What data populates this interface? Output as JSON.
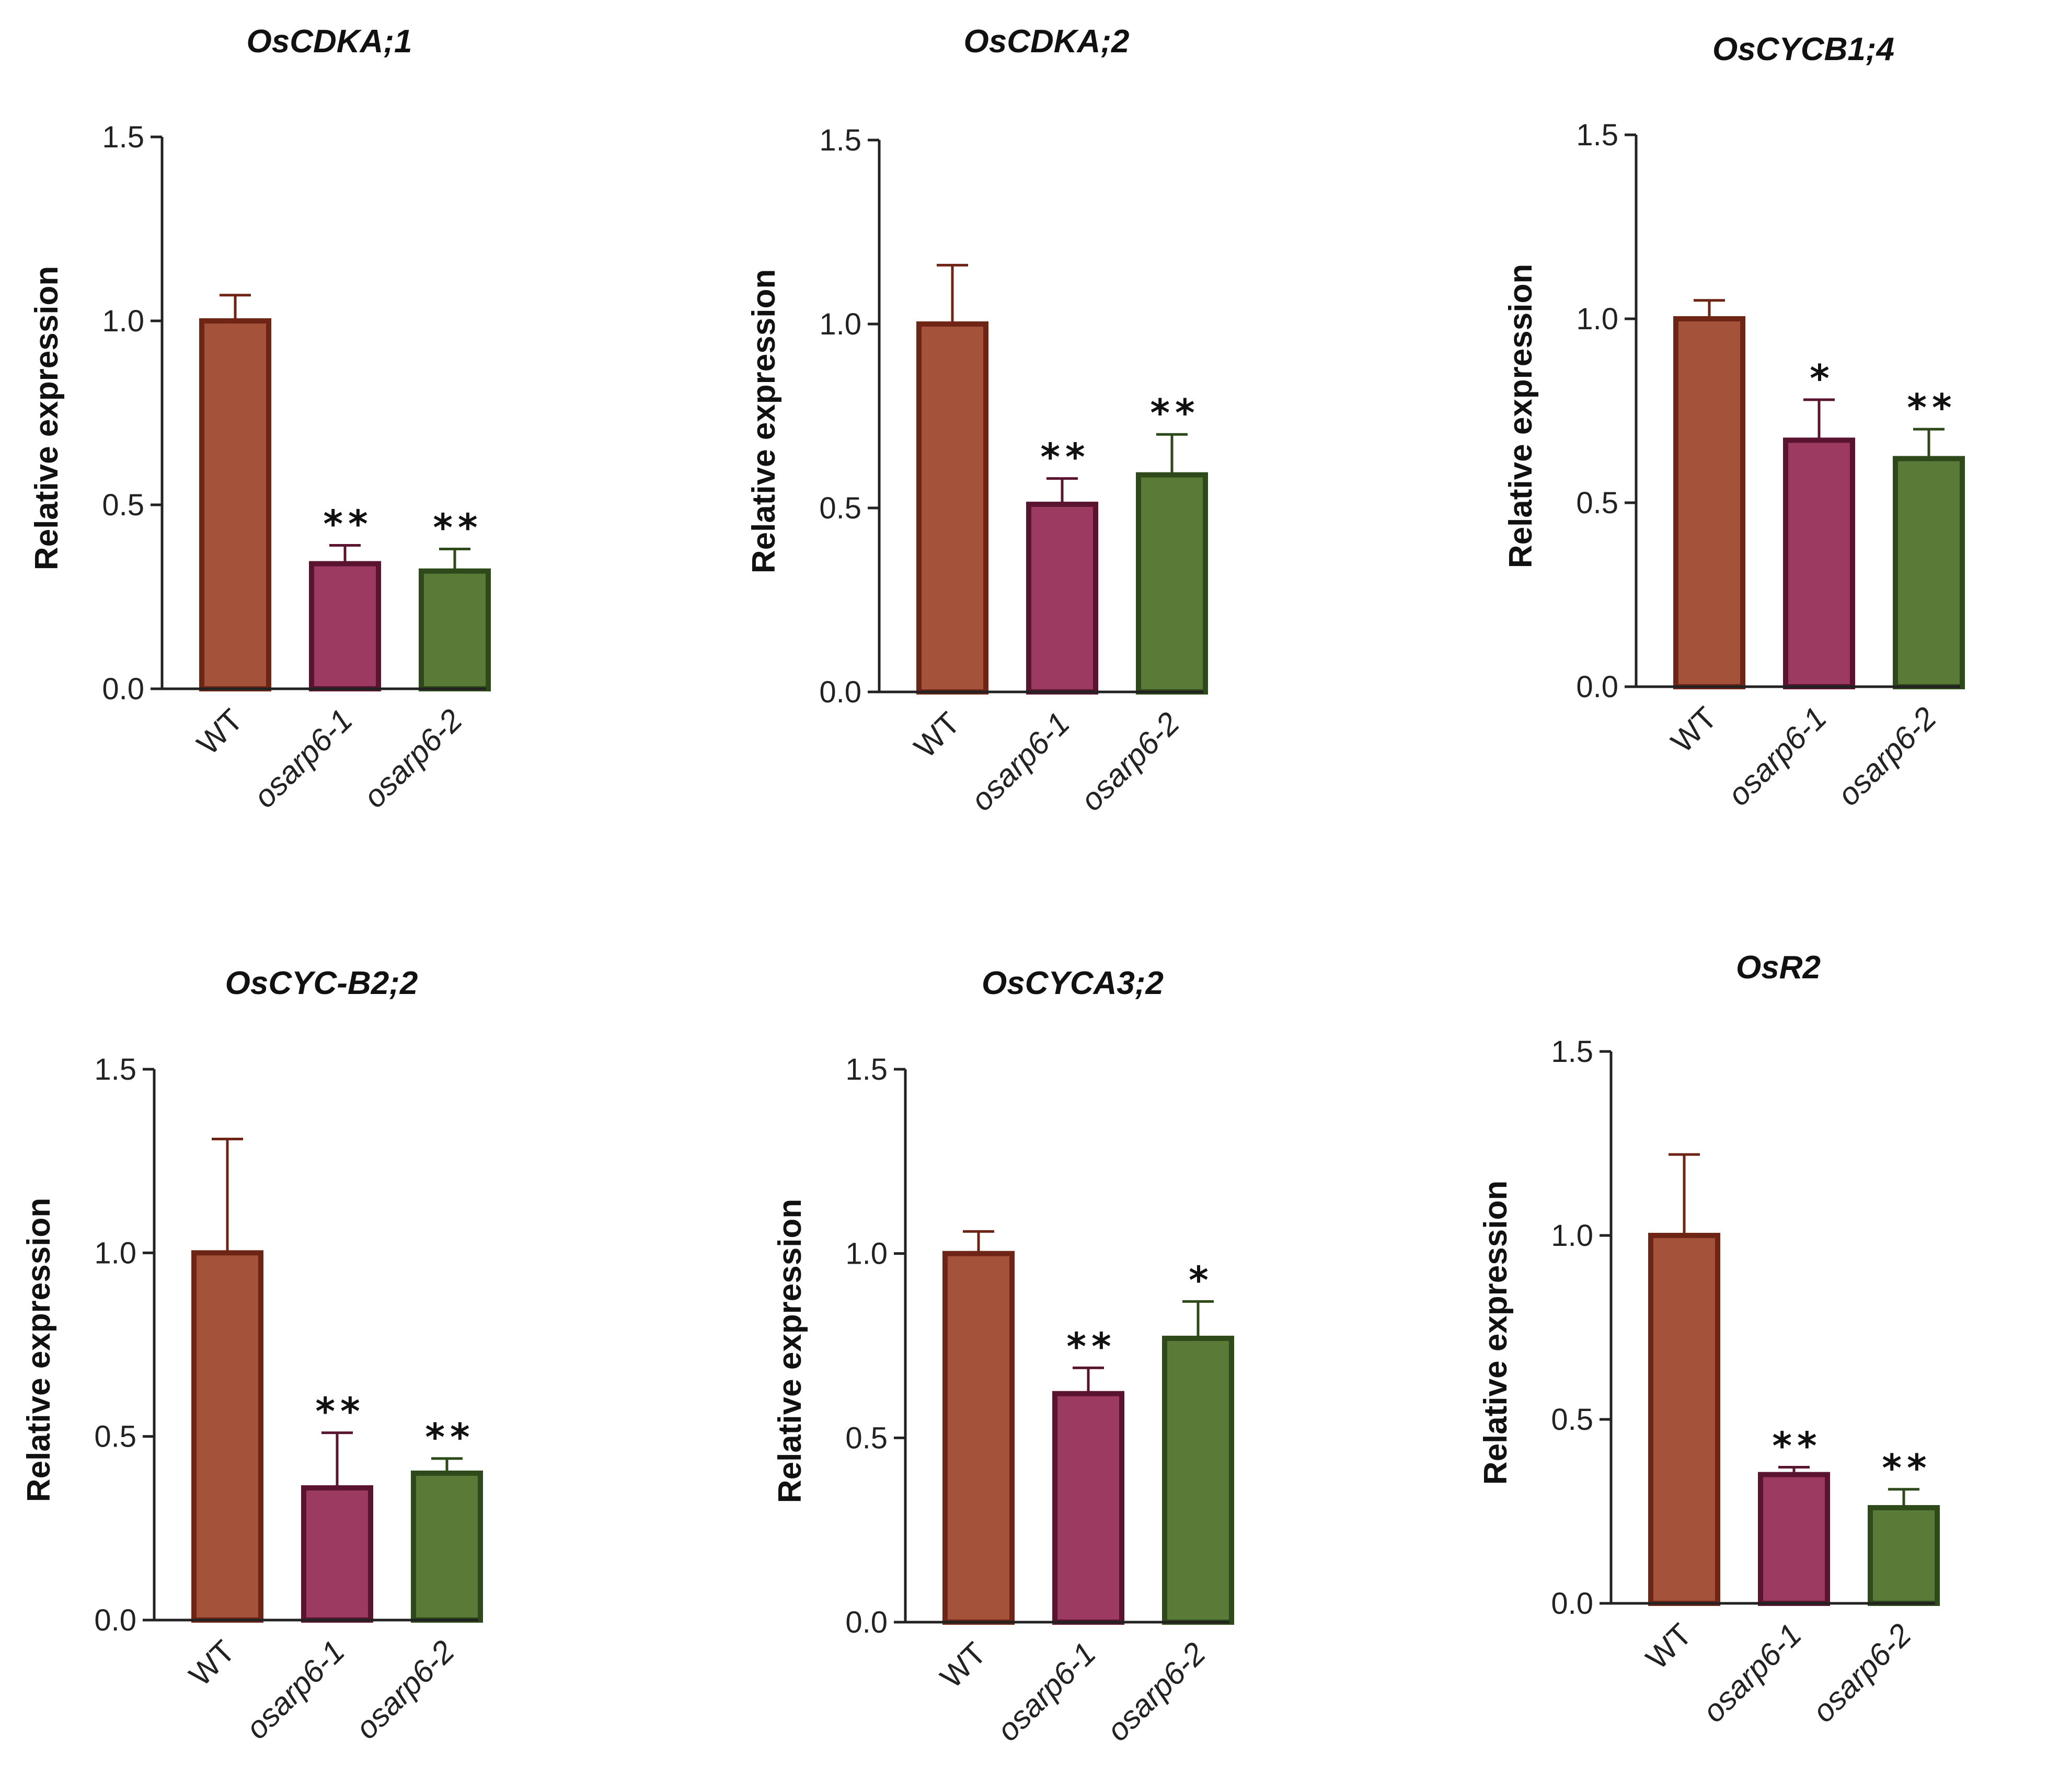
{
  "colors": {
    "axis": "#222222",
    "text": "#111111"
  },
  "chart_data": [
    {
      "type": "bar",
      "title": "OsCDKA;1",
      "ylabel": "Relative expression",
      "xlabel": "",
      "ylim": [
        0,
        1.5
      ],
      "yticks": [
        "0.0",
        "0.5",
        "1.0",
        "1.5"
      ],
      "categories": [
        "WT",
        "osarp6-1",
        "osarp6-2"
      ],
      "values": [
        1.0,
        0.34,
        0.32
      ],
      "errors": [
        0.07,
        0.05,
        0.06
      ],
      "significance": [
        "",
        "**",
        "**"
      ],
      "fill_colors": [
        "#a4533a",
        "#9c3a62",
        "#5a7b37"
      ],
      "edge_colors": [
        "#6e2516",
        "#5a1430",
        "#2e4a1a"
      ]
    },
    {
      "type": "bar",
      "title": "OsCDKA;2",
      "ylabel": "Relative expression",
      "xlabel": "",
      "ylim": [
        0,
        1.5
      ],
      "yticks": [
        "0.0",
        "0.5",
        "1.0",
        "1.5"
      ],
      "categories": [
        "WT",
        "osarp6-1",
        "osarp6-2"
      ],
      "values": [
        1.0,
        0.51,
        0.59
      ],
      "errors": [
        0.16,
        0.07,
        0.11
      ],
      "significance": [
        "",
        "**",
        "**"
      ],
      "fill_colors": [
        "#a4533a",
        "#9c3a62",
        "#5a7b37"
      ],
      "edge_colors": [
        "#6e2516",
        "#5a1430",
        "#2e4a1a"
      ]
    },
    {
      "type": "bar",
      "title": "OsCYCB1;4",
      "ylabel": "Relative expression",
      "xlabel": "",
      "ylim": [
        0,
        1.5
      ],
      "yticks": [
        "0.0",
        "0.5",
        "1.0",
        "1.5"
      ],
      "categories": [
        "WT",
        "osarp6-1",
        "osarp6-2"
      ],
      "values": [
        1.0,
        0.67,
        0.62
      ],
      "errors": [
        0.05,
        0.11,
        0.08
      ],
      "significance": [
        "",
        "*",
        "**"
      ],
      "fill_colors": [
        "#a4533a",
        "#9c3a62",
        "#5a7b37"
      ],
      "edge_colors": [
        "#6e2516",
        "#5a1430",
        "#2e4a1a"
      ]
    },
    {
      "type": "bar",
      "title": "OsCYC-B2;2",
      "ylabel": "Relative expression",
      "xlabel": "",
      "ylim": [
        0,
        1.5
      ],
      "yticks": [
        "0.0",
        "0.5",
        "1.0",
        "1.5"
      ],
      "categories": [
        "WT",
        "osarp6-1",
        "osarp6-2"
      ],
      "values": [
        1.0,
        0.36,
        0.4
      ],
      "errors": [
        0.31,
        0.15,
        0.04
      ],
      "significance": [
        "",
        "**",
        "**"
      ],
      "fill_colors": [
        "#a4533a",
        "#9c3a62",
        "#5a7b37"
      ],
      "edge_colors": [
        "#6e2516",
        "#5a1430",
        "#2e4a1a"
      ]
    },
    {
      "type": "bar",
      "title": "OsCYCA3;2",
      "ylabel": "Relative expression",
      "xlabel": "",
      "ylim": [
        0,
        1.5
      ],
      "yticks": [
        "0.0",
        "0.5",
        "1.0",
        "1.5"
      ],
      "categories": [
        "WT",
        "osarp6-1",
        "osarp6-2"
      ],
      "values": [
        1.0,
        0.62,
        0.77
      ],
      "errors": [
        0.06,
        0.07,
        0.1
      ],
      "significance": [
        "",
        "**",
        "*"
      ],
      "fill_colors": [
        "#a4533a",
        "#9c3a62",
        "#5a7b37"
      ],
      "edge_colors": [
        "#6e2516",
        "#5a1430",
        "#2e4a1a"
      ]
    },
    {
      "type": "bar",
      "title": "OsR2",
      "ylabel": "Relative expression",
      "xlabel": "",
      "ylim": [
        0,
        1.5
      ],
      "yticks": [
        "0.0",
        "0.5",
        "1.0",
        "1.5"
      ],
      "categories": [
        "WT",
        "osarp6-1",
        "osarp6-2"
      ],
      "values": [
        1.0,
        0.35,
        0.26
      ],
      "errors": [
        0.22,
        0.02,
        0.05
      ],
      "significance": [
        "",
        "**",
        "**"
      ],
      "fill_colors": [
        "#a4533a",
        "#9c3a62",
        "#5a7b37"
      ],
      "edge_colors": [
        "#6e2516",
        "#5a1430",
        "#2e4a1a"
      ]
    }
  ]
}
